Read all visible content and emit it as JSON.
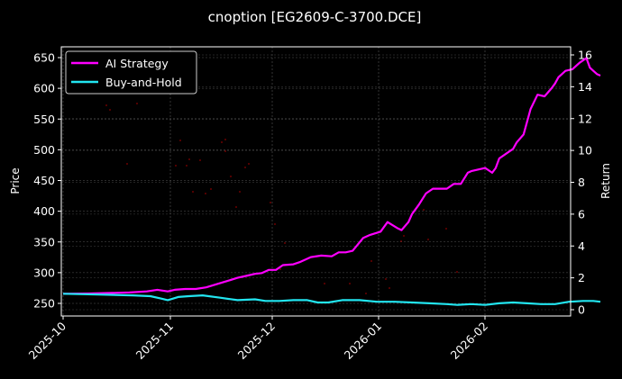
{
  "chart_data": {
    "type": "line",
    "title": "cnoption [EG2609-C-3700.DCE]",
    "xlabel": "",
    "ylabel_left": "Price",
    "ylabel_right": "Return",
    "ylim_left": [
      232,
      667
    ],
    "ylim_right": [
      -0.45,
      16.4
    ],
    "yticks_left": [
      250,
      300,
      350,
      400,
      450,
      500,
      550,
      600,
      650
    ],
    "yticks_right": [
      0,
      2,
      4,
      6,
      8,
      10,
      12,
      14,
      16
    ],
    "xticks": [
      "2025-10",
      "2025-11",
      "2025-12",
      "2026-01",
      "2026-02"
    ],
    "grid": true,
    "legend_position": "upper left",
    "legend": [
      "AI Strategy",
      "Buy-and-Hold"
    ],
    "series": [
      {
        "name": "AI Strategy",
        "axis": "right",
        "color": "#ff00ff",
        "x_day": [
          0,
          8,
          14,
          19,
          24,
          27,
          30,
          32,
          35,
          38,
          41,
          44,
          47,
          50,
          53,
          55,
          57,
          59,
          61,
          63,
          66,
          68,
          71,
          74,
          77,
          79,
          81,
          83,
          86,
          88,
          91,
          93,
          96,
          97,
          99,
          100,
          102,
          104,
          106,
          108,
          110,
          112,
          114,
          116,
          117,
          119,
          121,
          123,
          124,
          125,
          127,
          129,
          130,
          132,
          134,
          136,
          138,
          140,
          141,
          142,
          144,
          146,
          148,
          150,
          151,
          152,
          153,
          154
        ],
        "values": [
          1.0,
          1.02,
          1.05,
          1.08,
          1.15,
          1.25,
          1.15,
          1.25,
          1.3,
          1.3,
          1.4,
          1.6,
          1.8,
          2.0,
          2.15,
          2.25,
          2.3,
          2.5,
          2.5,
          2.8,
          2.85,
          3.0,
          3.3,
          3.4,
          3.35,
          3.6,
          3.6,
          3.7,
          4.5,
          4.7,
          4.9,
          5.5,
          5.1,
          5.0,
          5.5,
          6.0,
          6.6,
          7.3,
          7.6,
          7.6,
          7.6,
          7.9,
          7.9,
          8.6,
          8.7,
          8.8,
          8.9,
          8.6,
          8.9,
          9.5,
          9.8,
          10.1,
          10.5,
          11.0,
          12.6,
          13.5,
          13.4,
          13.9,
          14.2,
          14.6,
          15.0,
          15.1,
          15.5,
          15.8,
          15.2,
          15.0,
          14.8,
          14.7
        ]
      },
      {
        "name": "Buy-and-Hold",
        "axis": "right",
        "color": "#22e5f0",
        "x_day": [
          0,
          10,
          20,
          25,
          28,
          30,
          33,
          36,
          40,
          45,
          50,
          55,
          58,
          62,
          66,
          70,
          73,
          76,
          80,
          85,
          90,
          95,
          100,
          105,
          110,
          113,
          117,
          121,
          125,
          129,
          133,
          137,
          141,
          145,
          149,
          152,
          154
        ],
        "values": [
          1.0,
          0.95,
          0.9,
          0.85,
          0.7,
          0.6,
          0.8,
          0.85,
          0.9,
          0.75,
          0.6,
          0.65,
          0.55,
          0.55,
          0.6,
          0.6,
          0.45,
          0.45,
          0.6,
          0.6,
          0.5,
          0.5,
          0.45,
          0.4,
          0.35,
          0.3,
          0.35,
          0.3,
          0.4,
          0.45,
          0.4,
          0.35,
          0.35,
          0.5,
          0.55,
          0.55,
          0.5
        ]
      }
    ],
    "scatter_points_color": "#8b0000"
  }
}
